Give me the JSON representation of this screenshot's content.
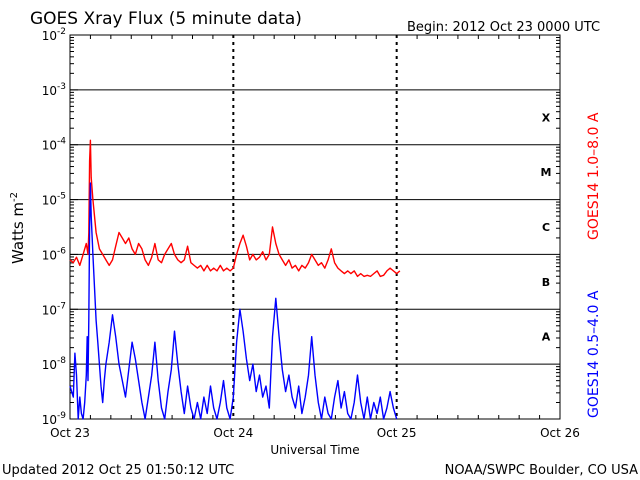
{
  "header": {
    "title": "GOES Xray Flux (5 minute data)",
    "begin": "Begin:  2012 Oct 23 0000 UTC"
  },
  "footer": {
    "updated": "Updated 2012 Oct 25 01:50:12 UTC",
    "credit": "NOAA/SWPC Boulder, CO USA"
  },
  "chart_data": {
    "type": "line",
    "title": "GOES Xray Flux (5 minute data)",
    "xlabel": "Universal Time",
    "ylabel_main": "Watts m",
    "ylabel_exp": "-2",
    "y_scale": "log",
    "ylim_exp": [
      -9,
      -2
    ],
    "y_ticks": [
      {
        "base": "10",
        "exp": "-9"
      },
      {
        "base": "10",
        "exp": "-8"
      },
      {
        "base": "10",
        "exp": "-7"
      },
      {
        "base": "10",
        "exp": "-6"
      },
      {
        "base": "10",
        "exp": "-5"
      },
      {
        "base": "10",
        "exp": "-4"
      },
      {
        "base": "10",
        "exp": "-3"
      },
      {
        "base": "10",
        "exp": "-2"
      }
    ],
    "x_ticks": [
      "Oct 23",
      "Oct 24",
      "Oct 25",
      "Oct 26"
    ],
    "xlim_days": [
      0,
      3
    ],
    "grid": true,
    "flare_classes": [
      {
        "label": "A",
        "level_exp": -7.5
      },
      {
        "label": "B",
        "level_exp": -6.5
      },
      {
        "label": "C",
        "level_exp": -5.5
      },
      {
        "label": "M",
        "level_exp": -4.5
      },
      {
        "label": "X",
        "level_exp": -3.5
      }
    ],
    "series": [
      {
        "name": "GOES14 1.0–8.0 A",
        "color": "#ff0000",
        "points": [
          [
            0.0,
            -6.1
          ],
          [
            0.02,
            -6.15
          ],
          [
            0.04,
            -6.05
          ],
          [
            0.06,
            -6.2
          ],
          [
            0.08,
            -6.0
          ],
          [
            0.1,
            -5.8
          ],
          [
            0.11,
            -6.0
          ],
          [
            0.115,
            -5.6
          ],
          [
            0.12,
            -4.3
          ],
          [
            0.125,
            -3.92
          ],
          [
            0.13,
            -4.6
          ],
          [
            0.14,
            -5.0
          ],
          [
            0.16,
            -5.6
          ],
          [
            0.18,
            -5.9
          ],
          [
            0.2,
            -6.0
          ],
          [
            0.22,
            -6.1
          ],
          [
            0.24,
            -6.2
          ],
          [
            0.26,
            -6.1
          ],
          [
            0.28,
            -5.85
          ],
          [
            0.3,
            -5.6
          ],
          [
            0.32,
            -5.7
          ],
          [
            0.34,
            -5.8
          ],
          [
            0.36,
            -5.7
          ],
          [
            0.38,
            -5.9
          ],
          [
            0.4,
            -6.0
          ],
          [
            0.42,
            -5.8
          ],
          [
            0.44,
            -5.9
          ],
          [
            0.46,
            -6.1
          ],
          [
            0.48,
            -6.2
          ],
          [
            0.5,
            -6.05
          ],
          [
            0.52,
            -5.8
          ],
          [
            0.54,
            -6.1
          ],
          [
            0.56,
            -6.15
          ],
          [
            0.58,
            -6.0
          ],
          [
            0.6,
            -5.9
          ],
          [
            0.62,
            -5.8
          ],
          [
            0.64,
            -6.0
          ],
          [
            0.66,
            -6.1
          ],
          [
            0.68,
            -6.15
          ],
          [
            0.7,
            -6.1
          ],
          [
            0.72,
            -5.85
          ],
          [
            0.74,
            -6.15
          ],
          [
            0.76,
            -6.2
          ],
          [
            0.78,
            -6.25
          ],
          [
            0.8,
            -6.2
          ],
          [
            0.82,
            -6.3
          ],
          [
            0.84,
            -6.2
          ],
          [
            0.86,
            -6.3
          ],
          [
            0.88,
            -6.25
          ],
          [
            0.9,
            -6.3
          ],
          [
            0.92,
            -6.2
          ],
          [
            0.94,
            -6.3
          ],
          [
            0.96,
            -6.25
          ],
          [
            0.98,
            -6.3
          ],
          [
            1.0,
            -6.25
          ],
          [
            1.02,
            -6.0
          ],
          [
            1.04,
            -5.8
          ],
          [
            1.06,
            -5.65
          ],
          [
            1.08,
            -5.85
          ],
          [
            1.1,
            -6.1
          ],
          [
            1.12,
            -6.0
          ],
          [
            1.14,
            -6.1
          ],
          [
            1.16,
            -6.05
          ],
          [
            1.18,
            -5.95
          ],
          [
            1.2,
            -6.1
          ],
          [
            1.22,
            -6.0
          ],
          [
            1.24,
            -5.5
          ],
          [
            1.26,
            -5.8
          ],
          [
            1.28,
            -6.0
          ],
          [
            1.3,
            -6.1
          ],
          [
            1.32,
            -6.2
          ],
          [
            1.34,
            -6.1
          ],
          [
            1.36,
            -6.25
          ],
          [
            1.38,
            -6.2
          ],
          [
            1.4,
            -6.3
          ],
          [
            1.42,
            -6.2
          ],
          [
            1.44,
            -6.25
          ],
          [
            1.46,
            -6.15
          ],
          [
            1.48,
            -6.0
          ],
          [
            1.5,
            -6.1
          ],
          [
            1.52,
            -6.2
          ],
          [
            1.54,
            -6.15
          ],
          [
            1.56,
            -6.25
          ],
          [
            1.58,
            -6.1
          ],
          [
            1.6,
            -5.9
          ],
          [
            1.62,
            -6.15
          ],
          [
            1.64,
            -6.25
          ],
          [
            1.66,
            -6.3
          ],
          [
            1.68,
            -6.35
          ],
          [
            1.7,
            -6.3
          ],
          [
            1.72,
            -6.35
          ],
          [
            1.74,
            -6.3
          ],
          [
            1.76,
            -6.4
          ],
          [
            1.78,
            -6.35
          ],
          [
            1.8,
            -6.4
          ],
          [
            1.82,
            -6.38
          ],
          [
            1.84,
            -6.4
          ],
          [
            1.86,
            -6.35
          ],
          [
            1.88,
            -6.3
          ],
          [
            1.9,
            -6.4
          ],
          [
            1.92,
            -6.38
          ],
          [
            1.94,
            -6.3
          ],
          [
            1.96,
            -6.25
          ],
          [
            1.98,
            -6.3
          ],
          [
            2.0,
            -6.35
          ],
          [
            2.02,
            -6.3
          ]
        ]
      },
      {
        "name": "GOES14 0.5–4.0 A",
        "color": "#0000ff",
        "points": [
          [
            0.0,
            -8.4
          ],
          [
            0.02,
            -8.6
          ],
          [
            0.03,
            -7.8
          ],
          [
            0.04,
            -8.2
          ],
          [
            0.05,
            -9.0
          ],
          [
            0.06,
            -8.6
          ],
          [
            0.07,
            -8.9
          ],
          [
            0.08,
            -9.0
          ],
          [
            0.09,
            -8.7
          ],
          [
            0.1,
            -8.2
          ],
          [
            0.105,
            -7.5
          ],
          [
            0.11,
            -8.3
          ],
          [
            0.115,
            -7.2
          ],
          [
            0.12,
            -5.5
          ],
          [
            0.125,
            -4.7
          ],
          [
            0.13,
            -5.3
          ],
          [
            0.14,
            -6.0
          ],
          [
            0.15,
            -6.6
          ],
          [
            0.16,
            -7.2
          ],
          [
            0.17,
            -7.6
          ],
          [
            0.18,
            -8.0
          ],
          [
            0.19,
            -8.4
          ],
          [
            0.2,
            -8.7
          ],
          [
            0.21,
            -8.3
          ],
          [
            0.22,
            -8.0
          ],
          [
            0.24,
            -7.6
          ],
          [
            0.26,
            -7.1
          ],
          [
            0.28,
            -7.5
          ],
          [
            0.3,
            -8.0
          ],
          [
            0.32,
            -8.3
          ],
          [
            0.34,
            -8.6
          ],
          [
            0.36,
            -8.1
          ],
          [
            0.38,
            -7.6
          ],
          [
            0.4,
            -7.9
          ],
          [
            0.42,
            -8.3
          ],
          [
            0.44,
            -8.7
          ],
          [
            0.46,
            -9.0
          ],
          [
            0.48,
            -8.6
          ],
          [
            0.5,
            -8.2
          ],
          [
            0.52,
            -7.6
          ],
          [
            0.54,
            -8.3
          ],
          [
            0.56,
            -8.8
          ],
          [
            0.58,
            -9.0
          ],
          [
            0.6,
            -8.5
          ],
          [
            0.62,
            -8.1
          ],
          [
            0.64,
            -7.4
          ],
          [
            0.66,
            -8.0
          ],
          [
            0.68,
            -8.5
          ],
          [
            0.7,
            -8.9
          ],
          [
            0.72,
            -8.4
          ],
          [
            0.74,
            -8.8
          ],
          [
            0.76,
            -9.0
          ],
          [
            0.78,
            -8.7
          ],
          [
            0.8,
            -9.0
          ],
          [
            0.82,
            -8.6
          ],
          [
            0.84,
            -8.9
          ],
          [
            0.86,
            -8.4
          ],
          [
            0.88,
            -8.8
          ],
          [
            0.9,
            -9.0
          ],
          [
            0.92,
            -8.7
          ],
          [
            0.94,
            -8.3
          ],
          [
            0.96,
            -8.8
          ],
          [
            0.98,
            -9.0
          ],
          [
            1.0,
            -8.6
          ],
          [
            1.02,
            -7.6
          ],
          [
            1.04,
            -7.0
          ],
          [
            1.06,
            -7.4
          ],
          [
            1.08,
            -7.9
          ],
          [
            1.1,
            -8.3
          ],
          [
            1.12,
            -8.0
          ],
          [
            1.14,
            -8.5
          ],
          [
            1.16,
            -8.2
          ],
          [
            1.18,
            -8.6
          ],
          [
            1.2,
            -8.4
          ],
          [
            1.22,
            -8.8
          ],
          [
            1.24,
            -7.5
          ],
          [
            1.26,
            -6.8
          ],
          [
            1.28,
            -7.5
          ],
          [
            1.3,
            -8.1
          ],
          [
            1.32,
            -8.5
          ],
          [
            1.34,
            -8.2
          ],
          [
            1.36,
            -8.6
          ],
          [
            1.38,
            -8.8
          ],
          [
            1.4,
            -8.4
          ],
          [
            1.42,
            -8.9
          ],
          [
            1.44,
            -8.6
          ],
          [
            1.46,
            -8.2
          ],
          [
            1.48,
            -7.5
          ],
          [
            1.5,
            -8.2
          ],
          [
            1.52,
            -8.7
          ],
          [
            1.54,
            -9.0
          ],
          [
            1.56,
            -8.6
          ],
          [
            1.58,
            -8.9
          ],
          [
            1.6,
            -9.0
          ],
          [
            1.62,
            -8.6
          ],
          [
            1.64,
            -8.3
          ],
          [
            1.66,
            -8.8
          ],
          [
            1.68,
            -8.5
          ],
          [
            1.7,
            -8.9
          ],
          [
            1.72,
            -9.0
          ],
          [
            1.74,
            -8.7
          ],
          [
            1.76,
            -8.2
          ],
          [
            1.78,
            -8.7
          ],
          [
            1.8,
            -9.0
          ],
          [
            1.82,
            -8.6
          ],
          [
            1.84,
            -9.0
          ],
          [
            1.86,
            -8.7
          ],
          [
            1.88,
            -8.9
          ],
          [
            1.9,
            -8.6
          ],
          [
            1.92,
            -9.0
          ],
          [
            1.94,
            -8.8
          ],
          [
            1.96,
            -8.5
          ],
          [
            1.98,
            -8.8
          ],
          [
            2.0,
            -9.0
          ]
        ]
      }
    ]
  }
}
